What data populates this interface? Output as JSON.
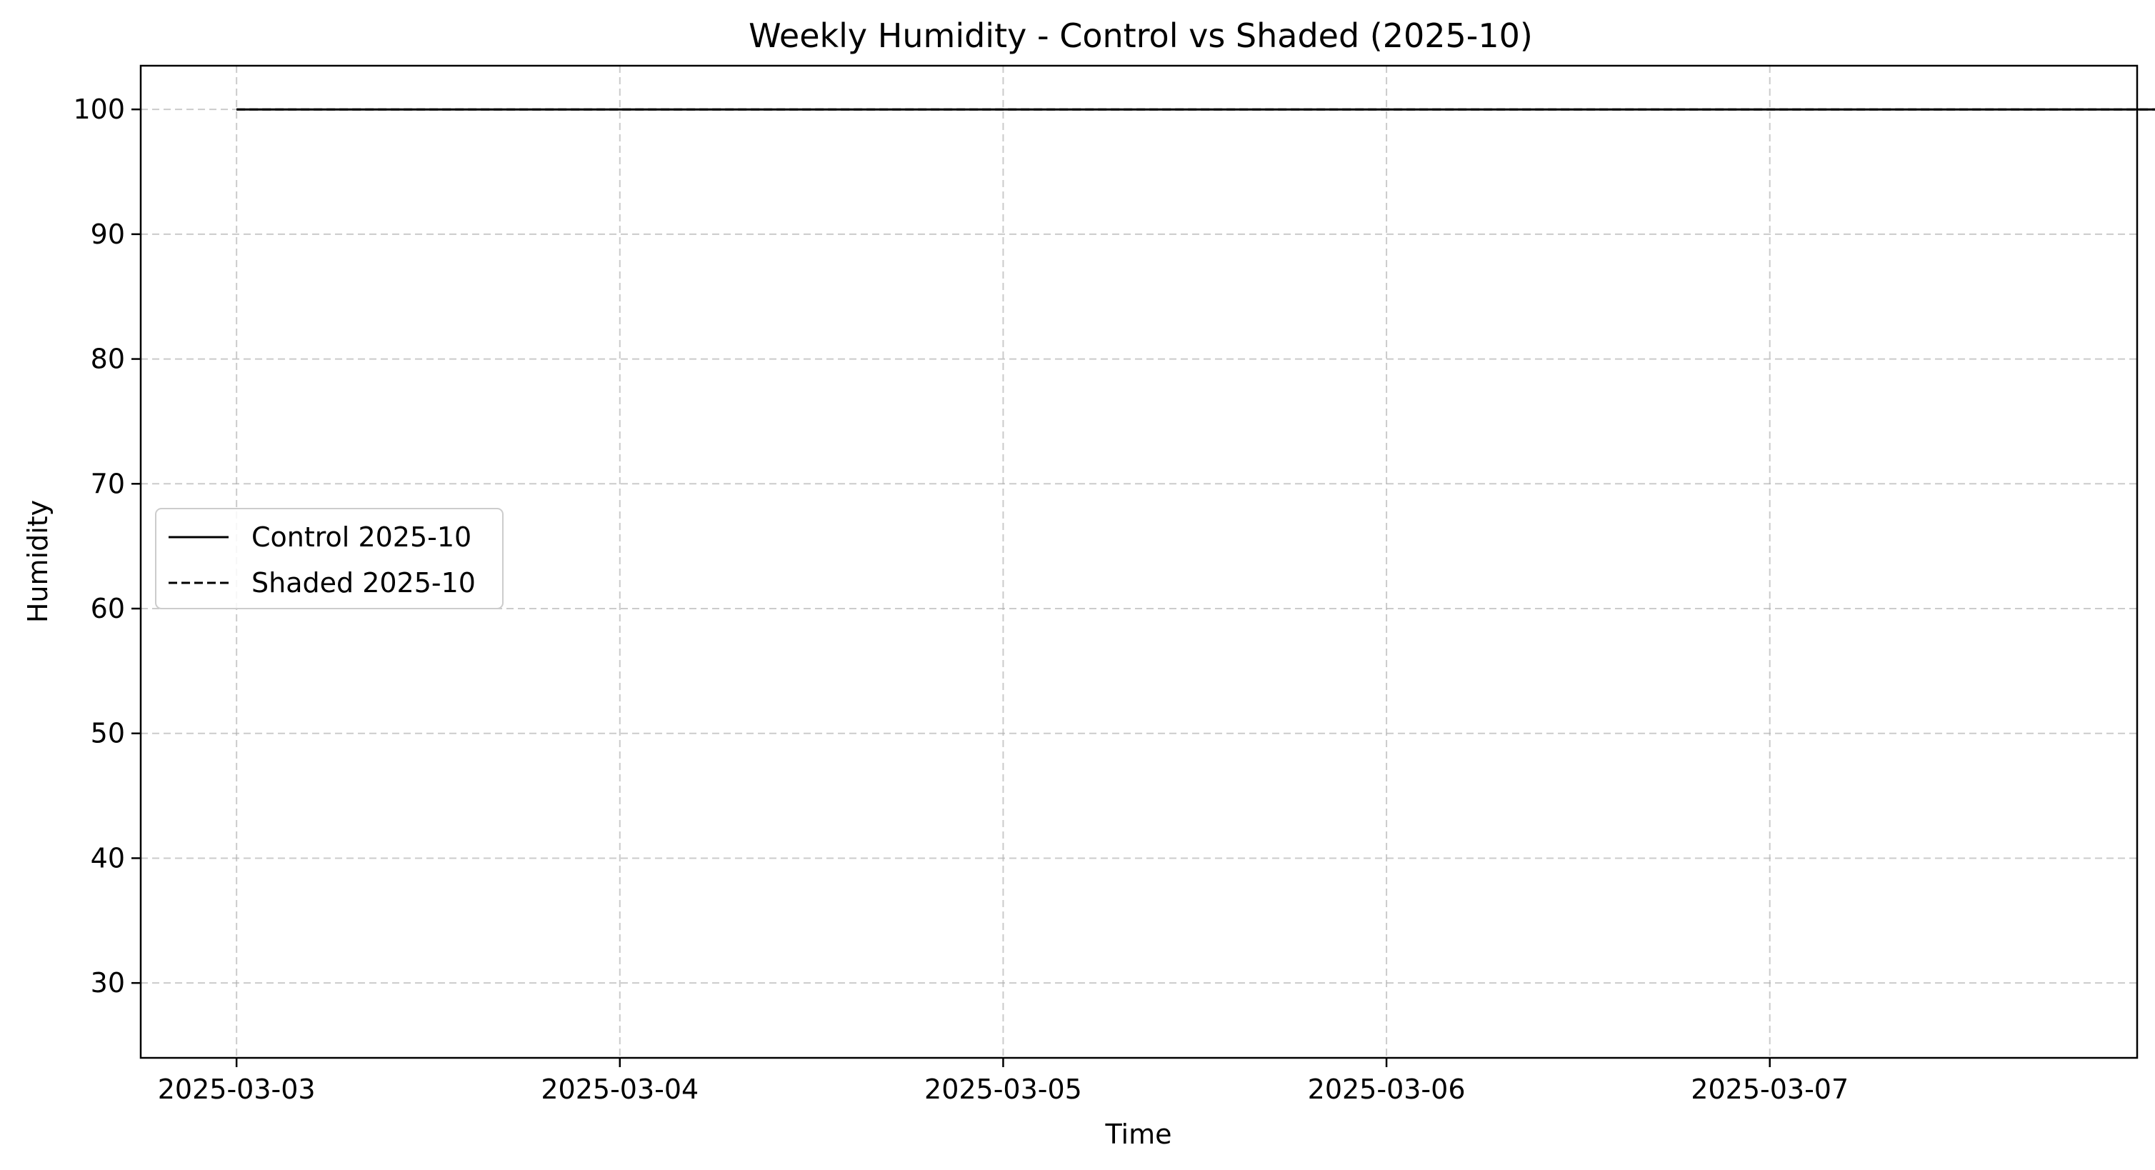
{
  "chart_data": {
    "type": "line",
    "title": "Weekly Humidity - Control vs Shaded (2025-10)",
    "xlabel": "Time",
    "ylabel": "Humidity",
    "x_start": "2025-03-03 00:00",
    "x_step_hours": 3,
    "xlim": [
      "2025-03-02 18:00",
      "2025-03-07 23:00"
    ],
    "ylim": [
      24,
      103.5
    ],
    "xticks": [
      "2025-03-03",
      "2025-03-04",
      "2025-03-05",
      "2025-03-06",
      "2025-03-07"
    ],
    "yticks": [
      30,
      40,
      50,
      60,
      70,
      80,
      90,
      100
    ],
    "grid": true,
    "legend_position": "center-left",
    "series": [
      {
        "name": "Control 2025-10",
        "style": "solid",
        "color": "#000000",
        "values": [
          100,
          100,
          100,
          100,
          100,
          100,
          100,
          100,
          100,
          100,
          100,
          100,
          100,
          100,
          100,
          100,
          100,
          100,
          100,
          100,
          100,
          100,
          100,
          100,
          100,
          100,
          100,
          100,
          100,
          100,
          100,
          100,
          100,
          100,
          100,
          100,
          100,
          100,
          100,
          100,
          100,
          100,
          100,
          100,
          100,
          100,
          100,
          100,
          100,
          100,
          100,
          100,
          100,
          100,
          100,
          100,
          100,
          100,
          100,
          100,
          100,
          100,
          100,
          100,
          100,
          100,
          100,
          100,
          100,
          100,
          100,
          100,
          100,
          100,
          100,
          100,
          100,
          100,
          100,
          100,
          100,
          100,
          100,
          100,
          100,
          100,
          100,
          100,
          100,
          100,
          100,
          100,
          100,
          100,
          100,
          100,
          100,
          100,
          100,
          100,
          100,
          100,
          100,
          100,
          100,
          100,
          100,
          100,
          100,
          100,
          100,
          100,
          100,
          100,
          100,
          100,
          100,
          100,
          100,
          100,
          100,
          100,
          100,
          100,
          100,
          100,
          100,
          100,
          100,
          100,
          100,
          100,
          100,
          100,
          100,
          100,
          100,
          100,
          100,
          100,
          100,
          100,
          100,
          100,
          100,
          100,
          100,
          100,
          100,
          100,
          100,
          100,
          100,
          100,
          100,
          100,
          100,
          100,
          100,
          100,
          100,
          100,
          100,
          100,
          100,
          100,
          100,
          100,
          100,
          100,
          100,
          100,
          100,
          100,
          100,
          100,
          100,
          100,
          100,
          100,
          100,
          100,
          100,
          100,
          100,
          100,
          100,
          100,
          100,
          100,
          100,
          100,
          100,
          100,
          100,
          100,
          100,
          100,
          100,
          100,
          100,
          100,
          100,
          100,
          100,
          100,
          100,
          100,
          100,
          100,
          100,
          100,
          100,
          100,
          100,
          100,
          100,
          100,
          100,
          100,
          100,
          100
        ]
      },
      {
        "name": "Shaded 2025-10",
        "style": "dashed",
        "color": "#000000",
        "values": [
          100,
          100,
          100,
          100,
          100,
          100,
          100,
          100,
          100,
          100,
          100,
          100,
          100,
          100,
          100,
          100,
          100,
          100,
          100,
          100,
          100,
          100,
          100,
          100,
          100,
          100,
          100,
          100,
          100,
          100,
          100,
          100,
          100,
          100,
          100,
          100,
          100,
          100,
          100,
          100,
          100,
          100,
          100,
          100,
          100,
          100,
          100,
          100,
          100,
          100,
          100,
          100,
          100,
          100,
          100,
          100,
          100,
          100,
          100,
          100,
          100,
          100,
          100,
          100,
          100,
          100,
          100,
          100,
          100,
          100,
          100,
          100,
          100,
          100,
          100,
          100,
          100,
          100,
          100,
          100,
          100,
          100,
          100,
          100,
          100,
          100,
          100,
          100,
          100,
          100,
          100,
          100,
          100,
          100,
          100,
          100,
          100,
          100,
          100,
          100,
          100,
          100,
          100,
          100,
          100,
          100,
          100,
          100,
          100,
          100,
          100,
          100,
          100,
          100,
          100,
          100,
          100,
          100,
          100,
          100,
          100,
          100,
          100,
          100,
          100,
          100,
          100,
          100,
          100,
          100,
          100,
          100,
          100,
          100,
          100,
          100,
          100,
          100,
          100,
          100,
          100,
          100,
          100,
          100,
          100,
          100,
          100,
          100,
          100,
          100,
          100,
          100,
          100,
          100,
          100,
          100,
          100,
          100,
          100,
          100,
          100,
          100,
          100,
          100,
          100,
          100,
          100,
          100,
          100,
          100,
          100,
          100,
          100,
          100,
          100,
          100,
          100,
          100,
          100,
          100,
          100,
          100,
          100,
          100,
          100,
          100,
          100,
          100,
          100,
          100,
          100,
          100,
          100,
          100,
          100,
          100,
          100,
          100,
          100,
          100,
          100,
          100,
          100,
          100,
          100,
          100,
          100,
          100,
          100,
          100,
          100,
          100,
          100,
          100,
          100,
          100,
          100,
          100,
          100,
          100,
          100,
          100,
          100
        ]
      }
    ]
  }
}
